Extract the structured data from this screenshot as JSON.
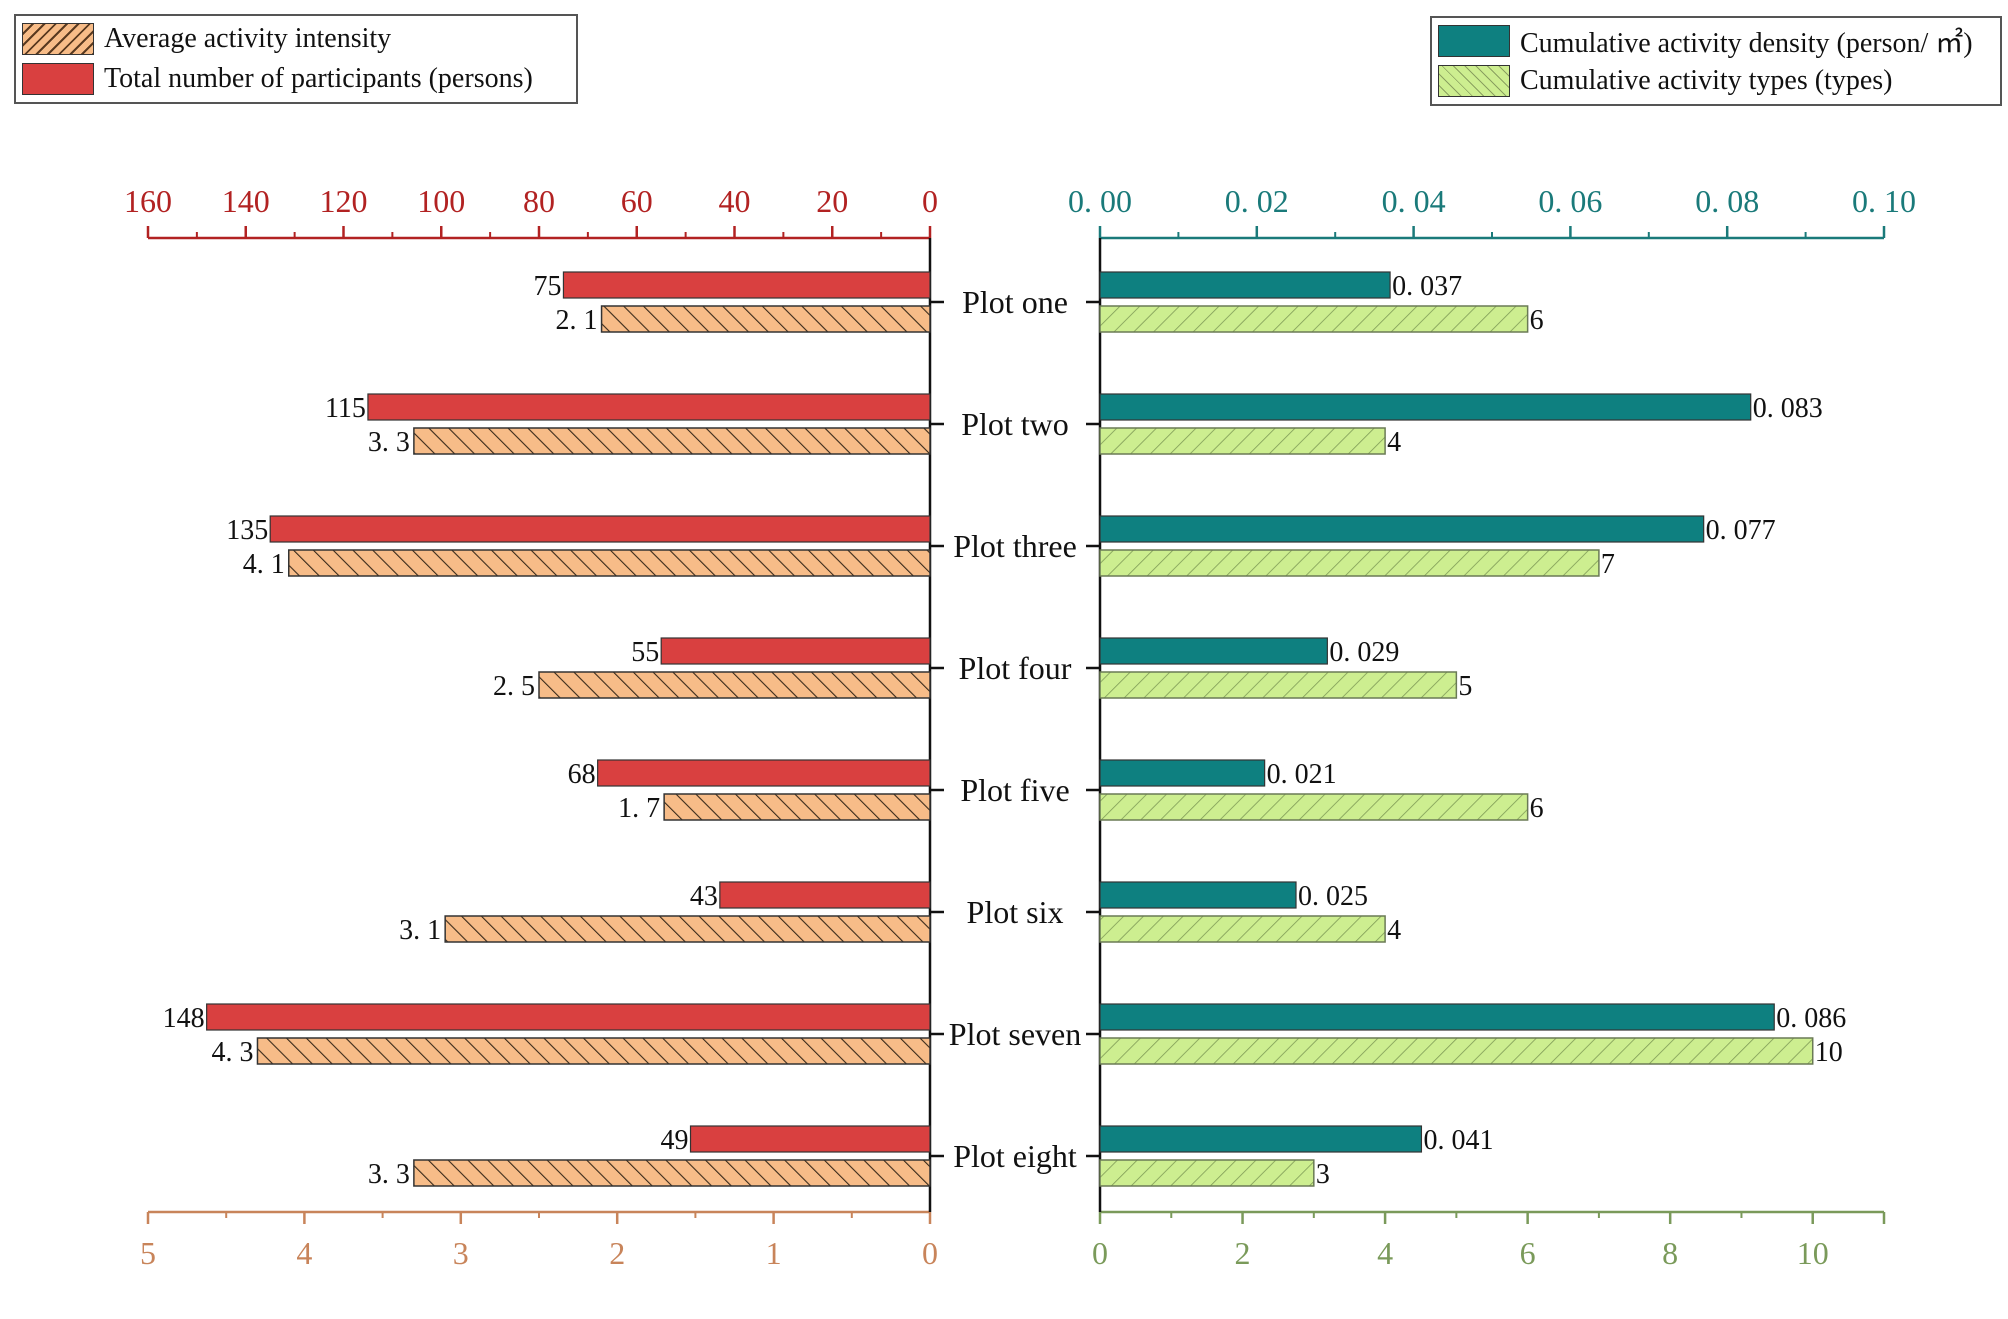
{
  "chart_data": {
    "type": "bar",
    "orientation": "horizontal-butterfly",
    "categories": [
      "Plot one",
      "Plot two",
      "Plot three",
      "Plot four",
      "Plot five",
      "Plot six",
      "Plot seven",
      "Plot eight"
    ],
    "left_panel": {
      "top_axis": {
        "name": "Total number of participants (persons)",
        "ticks": [
          "160",
          "140",
          "120",
          "100",
          "80",
          "60",
          "40",
          "20",
          "0"
        ],
        "range": [
          0,
          160
        ],
        "color": "#b22222"
      },
      "bottom_axis": {
        "name": "Average activity intensity",
        "ticks": [
          "5",
          "4",
          "3",
          "2",
          "1",
          "0"
        ],
        "range": [
          0,
          5
        ],
        "color": "#c8845a"
      },
      "series": [
        {
          "name": "Total number of participants (persons)",
          "axis": "top",
          "color": "#d94040",
          "pattern": "solid",
          "values": [
            75,
            115,
            135,
            55,
            68,
            43,
            148,
            49
          ],
          "labels": [
            "75",
            "115",
            "135",
            "55",
            "68",
            "43",
            "148",
            "49"
          ]
        },
        {
          "name": "Average activity intensity",
          "axis": "bottom",
          "color": "#f7bc88",
          "pattern": "hatch-backslash",
          "values": [
            2.1,
            3.3,
            4.1,
            2.5,
            1.7,
            3.1,
            4.3,
            3.3
          ],
          "labels": [
            "2. 1",
            "3. 3",
            "4. 1",
            "2. 5",
            "1. 7",
            "3. 1",
            "4. 3",
            "3. 3"
          ]
        }
      ]
    },
    "right_panel": {
      "top_axis": {
        "name": "Cumulative activity density (person/ ㎡)",
        "ticks": [
          "0. 00",
          "0. 02",
          "0. 04",
          "0. 06",
          "0. 08",
          "0. 10"
        ],
        "range": [
          0,
          0.1
        ],
        "color": "#1a7a7a"
      },
      "bottom_axis": {
        "name": "Cumulative activity types (types)",
        "ticks": [
          "0",
          "2",
          "4",
          "6",
          "8",
          "10"
        ],
        "range": [
          0,
          11
        ],
        "color": "#7a9a5a"
      },
      "series": [
        {
          "name": "Cumulative activity density (person/ ㎡)",
          "axis": "top",
          "color": "#0e8080",
          "pattern": "solid",
          "values": [
            0.037,
            0.083,
            0.077,
            0.029,
            0.021,
            0.025,
            0.086,
            0.041
          ],
          "labels": [
            "0. 037",
            "0. 083",
            "0. 077",
            "0. 029",
            "0. 021",
            "0. 025",
            "0. 086",
            "0. 041"
          ]
        },
        {
          "name": "Cumulative activity types (types)",
          "axis": "bottom",
          "color": "#cdee90",
          "pattern": "hatch-slash",
          "values": [
            6,
            4,
            7,
            5,
            6,
            4,
            10,
            3
          ],
          "labels": [
            "6",
            "4",
            "7",
            "5",
            "6",
            "4",
            "10",
            "3"
          ]
        }
      ]
    },
    "legends": {
      "left": [
        {
          "label": "Average activity intensity",
          "color": "#f7bc88",
          "pattern": "hatch-slash"
        },
        {
          "label": "Total number of participants (persons)",
          "color": "#d94040",
          "pattern": "solid"
        }
      ],
      "right": [
        {
          "label": "Cumulative activity density (person/ ㎡)",
          "color": "#0e8080",
          "pattern": "solid"
        },
        {
          "label": "Cumulative activity types (types)",
          "color": "#cdee90",
          "pattern": "hatch-slash"
        }
      ]
    }
  }
}
